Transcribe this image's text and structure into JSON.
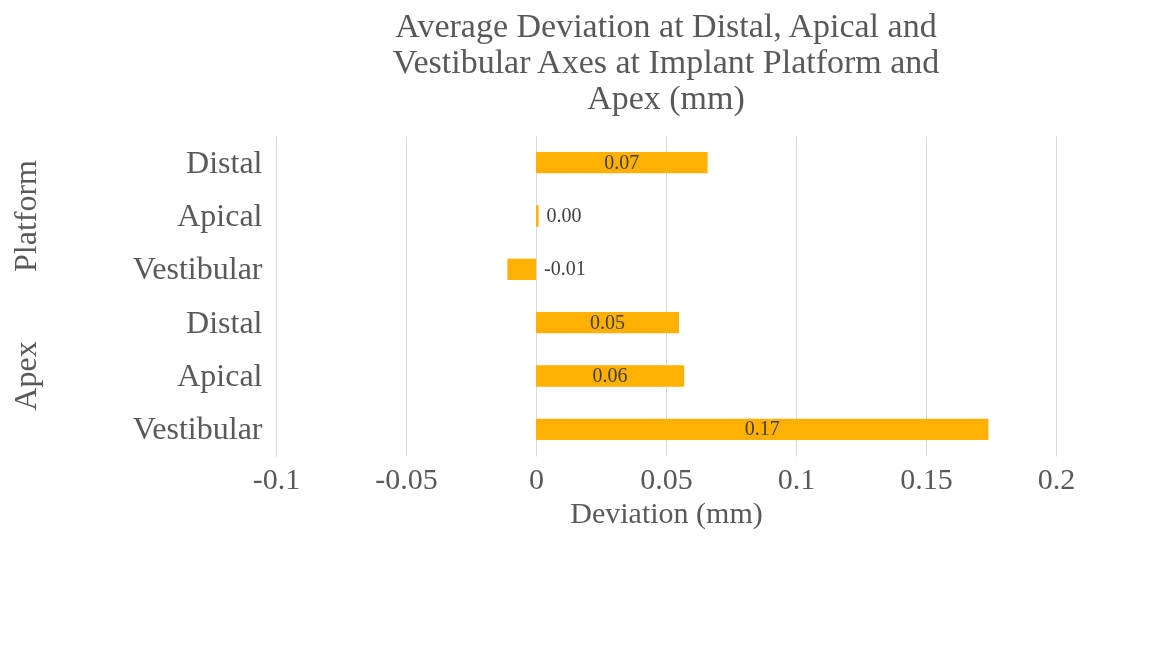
{
  "chart_data": {
    "type": "bar",
    "orientation": "horizontal",
    "title": "Average Deviation at Distal, Apical and Vestibular Axes at Implant Platform and Apex (mm)",
    "xlabel": "Deviation (mm)",
    "categories": [
      "Distal",
      "Apical",
      "Vestibular",
      "Distal",
      "Apical",
      "Vestibular"
    ],
    "values": [
      0.066,
      0.001,
      -0.011,
      0.055,
      0.057,
      0.174
    ],
    "value_labels": [
      "0.07",
      "0.00",
      "-0.01",
      "0.05",
      "0.06",
      "0.17"
    ],
    "color": "#ffb000",
    "xlim": [
      -0.1,
      0.2
    ],
    "xticks": [
      -0.1,
      -0.05,
      0,
      0.05,
      0.1,
      0.15,
      0.2
    ],
    "annotations": [
      "Platform",
      "Apex"
    ],
    "grid": "x"
  }
}
